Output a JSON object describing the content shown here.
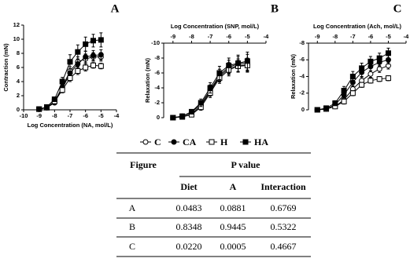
{
  "chart_data": [
    {
      "type": "line",
      "panel": "A",
      "xlabel": "Log Concentration (NA, mol/L)",
      "ylabel": "Contraction (mN)",
      "x_axis_position": "bottom",
      "xlim": [
        -10,
        -4
      ],
      "xticks": [
        -10,
        -9,
        -8,
        -7,
        -6,
        -5,
        -4
      ],
      "ylim": [
        0,
        12
      ],
      "yticks": [
        0,
        2,
        4,
        6,
        8,
        10,
        12
      ],
      "x": [
        -9,
        -8.5,
        -8,
        -7.5,
        -7,
        -6.5,
        -6,
        -5.5,
        -5
      ],
      "series": [
        {
          "name": "C",
          "marker": "circle-open",
          "color": "#000000",
          "values": [
            0.1,
            0.3,
            1.2,
            3.2,
            5.5,
            6.8,
            7.2,
            7.5,
            7.5
          ],
          "errors": [
            0.1,
            0.1,
            0.2,
            0.4,
            0.6,
            0.7,
            0.7,
            0.6,
            0.6
          ]
        },
        {
          "name": "CA",
          "marker": "circle-filled",
          "color": "#000000",
          "values": [
            0.1,
            0.3,
            1.0,
            3.0,
            5.2,
            6.5,
            7.5,
            7.7,
            7.8
          ],
          "errors": [
            0.1,
            0.1,
            0.2,
            0.4,
            0.6,
            0.7,
            0.8,
            0.7,
            0.7
          ]
        },
        {
          "name": "H",
          "marker": "square-open",
          "color": "#000000",
          "values": [
            0.1,
            0.3,
            1.2,
            2.8,
            4.5,
            5.5,
            6.0,
            6.3,
            6.2
          ],
          "errors": [
            0.1,
            0.1,
            0.2,
            0.4,
            0.5,
            0.5,
            0.5,
            0.4,
            0.4
          ]
        },
        {
          "name": "HA",
          "marker": "square-filled",
          "color": "#000000",
          "values": [
            0.1,
            0.4,
            1.5,
            4.0,
            6.8,
            8.2,
            9.3,
            9.8,
            9.9
          ],
          "errors": [
            0.1,
            0.1,
            0.3,
            0.6,
            1.0,
            1.0,
            1.0,
            0.9,
            1.0
          ]
        }
      ]
    },
    {
      "type": "line",
      "panel": "B",
      "xlabel": "Log Concentration (SNP, mol/L)",
      "ylabel": "Relaxation (mN)",
      "x_axis_position": "top",
      "xlim": [
        -9.5,
        -4
      ],
      "xticks": [
        -9,
        -8,
        -7,
        -6,
        -5,
        -4
      ],
      "ylim": [
        0,
        -10
      ],
      "yticks": [
        0,
        -2,
        -4,
        -6,
        -8,
        -10
      ],
      "x": [
        -9,
        -8.5,
        -8,
        -7.5,
        -7,
        -6.5,
        -6,
        -5.5,
        -5
      ],
      "series": [
        {
          "marker": "circle-open",
          "color": "#000000",
          "values": [
            0,
            -0.1,
            -0.5,
            -1.6,
            -3.5,
            -5.5,
            -6.6,
            -7.0,
            -7.1
          ],
          "errors": [
            0.1,
            0.2,
            0.3,
            0.4,
            0.6,
            0.7,
            0.8,
            0.9,
            0.9
          ]
        },
        {
          "marker": "circle-filled",
          "color": "#000000",
          "values": [
            0,
            -0.2,
            -0.7,
            -1.8,
            -3.7,
            -5.7,
            -6.8,
            -7.2,
            -7.4
          ],
          "errors": [
            0.1,
            0.2,
            0.3,
            0.5,
            0.7,
            0.8,
            0.9,
            1.0,
            1.1
          ]
        },
        {
          "marker": "square-open",
          "color": "#000000",
          "values": [
            0,
            -0.1,
            -0.4,
            -1.4,
            -3.3,
            -5.3,
            -6.4,
            -6.9,
            -7.0
          ],
          "errors": [
            0.1,
            0.2,
            0.3,
            0.4,
            0.6,
            0.7,
            0.8,
            0.8,
            0.9
          ]
        },
        {
          "marker": "square-filled",
          "color": "#000000",
          "values": [
            0,
            -0.2,
            -0.8,
            -2.0,
            -4.0,
            -6.0,
            -7.0,
            -7.3,
            -7.6
          ],
          "errors": [
            0.1,
            0.2,
            0.3,
            0.5,
            0.7,
            0.9,
            1.0,
            1.1,
            1.2
          ]
        }
      ]
    },
    {
      "type": "line",
      "panel": "C",
      "xlabel": "Log Concentration (Ach, mol/L)",
      "ylabel": "Relaxation (mN)",
      "x_axis_position": "top",
      "xlim": [
        -9.5,
        -4
      ],
      "xticks": [
        -9,
        -8,
        -7,
        -6,
        -5,
        -4
      ],
      "ylim": [
        0,
        -8
      ],
      "yticks": [
        0,
        -2,
        -4,
        -6,
        -8
      ],
      "x": [
        -9,
        -8.5,
        -8,
        -7.5,
        -7,
        -6.5,
        -6,
        -5.5,
        -5
      ],
      "series": [
        {
          "marker": "circle-open",
          "color": "#000000",
          "values": [
            0,
            -0.1,
            -0.4,
            -1.2,
            -2.5,
            -3.5,
            -4.3,
            -4.9,
            -5.3
          ],
          "errors": [
            0.1,
            0.1,
            0.2,
            0.3,
            0.4,
            0.4,
            0.4,
            0.4,
            0.4
          ]
        },
        {
          "marker": "circle-filled",
          "color": "#000000",
          "values": [
            0,
            -0.1,
            -0.6,
            -1.8,
            -3.3,
            -4.5,
            -5.2,
            -5.7,
            -6.0
          ],
          "errors": [
            0.1,
            0.1,
            0.2,
            0.4,
            0.5,
            0.5,
            0.5,
            0.5,
            0.5
          ]
        },
        {
          "marker": "square-open",
          "color": "#000000",
          "values": [
            0,
            -0.1,
            -0.4,
            -1.0,
            -2.0,
            -3.0,
            -3.5,
            -3.7,
            -3.8
          ],
          "errors": [
            0.1,
            0.1,
            0.2,
            0.3,
            0.3,
            0.3,
            0.3,
            0.3,
            0.3
          ]
        },
        {
          "marker": "square-filled",
          "color": "#000000",
          "values": [
            0,
            -0.2,
            -0.8,
            -2.3,
            -4.0,
            -5.0,
            -5.8,
            -6.2,
            -6.8
          ],
          "errors": [
            0.1,
            0.1,
            0.3,
            0.5,
            0.6,
            0.6,
            0.6,
            0.6,
            0.6
          ]
        }
      ]
    }
  ],
  "table": {
    "headers": [
      "Figure",
      "P value"
    ],
    "subheaders": [
      "Diet",
      "A",
      "Interaction"
    ],
    "rows": [
      [
        "A",
        "0.0483",
        "0.0881",
        "0.6769"
      ],
      [
        "B",
        "0.8348",
        "0.9445",
        "0.5322"
      ],
      [
        "C",
        "0.0220",
        "0.0005",
        "0.4667"
      ]
    ]
  }
}
